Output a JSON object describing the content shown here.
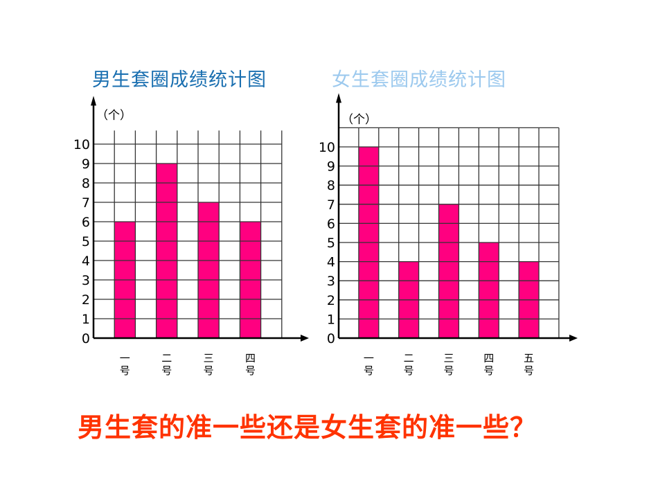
{
  "colors": {
    "bar": "#ff0080",
    "boys_title": "#1a6fb0",
    "girls_title": "#9cc9ee",
    "question": "#ff3300",
    "grid": "#333333"
  },
  "titles": {
    "boys": "男生套圈成绩统计图",
    "girls": "女生套圈成绩统计图"
  },
  "question": "男生套的准一些还是女生套的准一些？",
  "chart_data": [
    {
      "type": "bar",
      "title": "男生套圈成绩统计图",
      "ylabel": "（个）",
      "xlabel": "",
      "categories": [
        "一号",
        "二号",
        "三号",
        "四号"
      ],
      "values": [
        6,
        9,
        7,
        6
      ],
      "ylim": [
        0,
        10
      ],
      "yticks": [
        0,
        1,
        2,
        3,
        4,
        5,
        6,
        7,
        8,
        9,
        10
      ],
      "grid": true,
      "legend": null
    },
    {
      "type": "bar",
      "title": "女生套圈成绩统计图",
      "ylabel": "（个）",
      "xlabel": "",
      "categories": [
        "一号",
        "二号",
        "三号",
        "四号",
        "五号"
      ],
      "values": [
        10,
        4,
        7,
        5,
        4
      ],
      "ylim": [
        0,
        10
      ],
      "yticks": [
        0,
        1,
        2,
        3,
        4,
        5,
        6,
        7,
        8,
        9,
        10
      ],
      "grid": true,
      "legend": null
    }
  ]
}
